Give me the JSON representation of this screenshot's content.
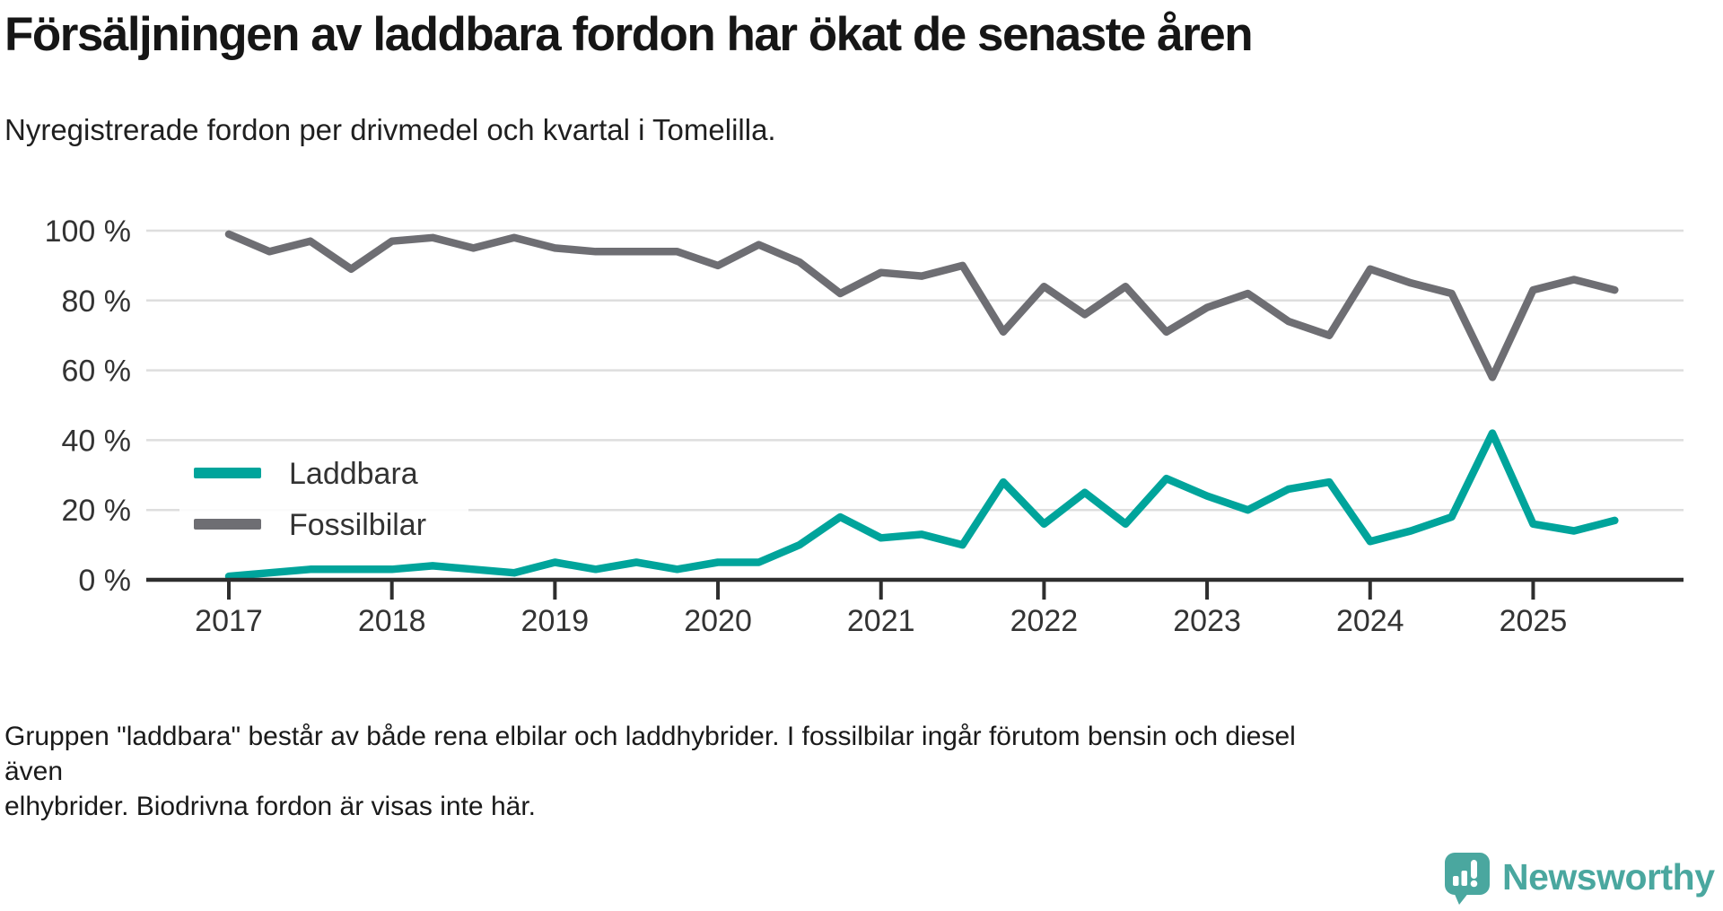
{
  "header": {
    "title": "Försäljningen av laddbara fordon har ökat de senaste åren",
    "subtitle": "Nyregistrerade fordon per drivmedel och kvartal i Tomelilla."
  },
  "footnote_lines": [
    "Gruppen \"laddbara\" består av både rena elbilar och laddhybrider. I fossilbilar ingår förutom bensin och diesel även",
    "elhybrider. Biodrivna fordon är visas inte här."
  ],
  "brand": {
    "name": "Newsworthy",
    "icon": "bar-chart-speech-bubble-icon",
    "color": "#4aa79f"
  },
  "colors": {
    "laddbara": "#00a49b",
    "fossilbilar": "#6e6e73",
    "grid": "#dedede",
    "axis": "#2e2e2e",
    "text": "#333333"
  },
  "chart_data": {
    "type": "line",
    "x_unit": "quarter",
    "x_start": "2017 Q1",
    "x_end": "2025 Q3",
    "points_per_year": 4,
    "x_tick_labels": [
      "2017",
      "2018",
      "2019",
      "2020",
      "2021",
      "2022",
      "2023",
      "2024",
      "2025"
    ],
    "y_tick_labels": [
      "0 %",
      "20 %",
      "40 %",
      "60 %",
      "80 %",
      "100 %"
    ],
    "y_tick_values": [
      0,
      20,
      40,
      60,
      80,
      100
    ],
    "ylim": [
      0,
      100
    ],
    "grid": true,
    "legend_position": "inside-left",
    "series": [
      {
        "name": "Laddbara",
        "color": "#00a49b",
        "values": [
          1,
          2,
          3,
          3,
          3,
          4,
          3,
          2,
          5,
          3,
          5,
          3,
          5,
          5,
          10,
          18,
          12,
          13,
          10,
          28,
          16,
          25,
          16,
          29,
          24,
          20,
          26,
          28,
          11,
          14,
          18,
          42,
          16,
          14,
          17
        ]
      },
      {
        "name": "Fossilbilar",
        "color": "#6e6e73",
        "values": [
          99,
          94,
          97,
          89,
          97,
          98,
          95,
          98,
          95,
          94,
          94,
          94,
          90,
          96,
          91,
          82,
          88,
          87,
          90,
          71,
          84,
          76,
          84,
          71,
          78,
          82,
          74,
          70,
          89,
          85,
          82,
          58,
          83,
          86,
          83
        ]
      }
    ]
  }
}
